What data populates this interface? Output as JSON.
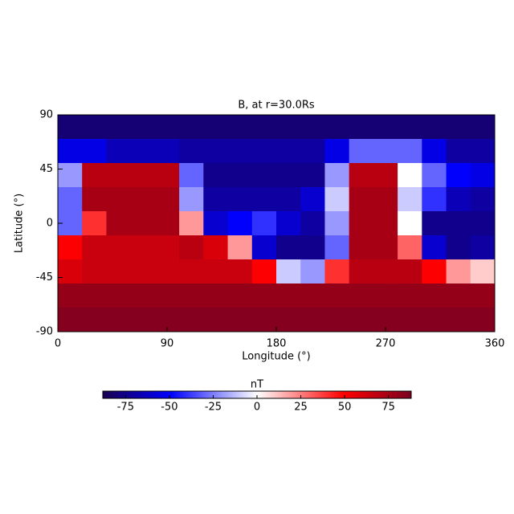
{
  "chart_data": {
    "type": "heatmap",
    "title": "B, at r=30.0Rs",
    "x_label": "Longitude (°)",
    "y_label": "Latitude (°)",
    "xlim": [
      0,
      360
    ],
    "ylim": [
      -90,
      90
    ],
    "xticks": [
      0,
      90,
      180,
      270,
      360
    ],
    "yticks": [
      -90,
      -45,
      0,
      45,
      90
    ],
    "x": [
      10,
      30,
      50,
      70,
      90,
      110,
      130,
      150,
      170,
      190,
      210,
      230,
      250,
      270,
      290,
      310,
      330,
      350
    ],
    "y": [
      80,
      60,
      40,
      20,
      0,
      -20,
      -40,
      -60,
      -80
    ],
    "z": [
      [
        -80,
        -80,
        -80,
        -80,
        -80,
        -80,
        -80,
        -80,
        -80,
        -80,
        -80,
        -80,
        -80,
        -80,
        -80,
        -80,
        -80,
        -80
      ],
      [
        -55,
        -55,
        -65,
        -65,
        -65,
        -70,
        -70,
        -70,
        -70,
        -70,
        -70,
        -55,
        -30,
        -30,
        -30,
        -55,
        -70,
        -70
      ],
      [
        -20,
        70,
        70,
        70,
        70,
        -30,
        -75,
        -75,
        -75,
        -75,
        -75,
        -20,
        70,
        70,
        0,
        -30,
        -50,
        -55
      ],
      [
        -30,
        75,
        75,
        75,
        75,
        -20,
        -70,
        -70,
        -70,
        -70,
        -60,
        -10,
        75,
        75,
        -10,
        -40,
        -65,
        -70
      ],
      [
        -30,
        40,
        75,
        75,
        75,
        20,
        -60,
        -50,
        -40,
        -60,
        -70,
        -20,
        75,
        75,
        0,
        -75,
        -75,
        -75
      ],
      [
        50,
        65,
        65,
        65,
        65,
        70,
        60,
        20,
        -60,
        -75,
        -75,
        -30,
        75,
        75,
        30,
        -60,
        -75,
        -70
      ],
      [
        60,
        65,
        65,
        65,
        65,
        65,
        65,
        65,
        50,
        -10,
        -20,
        40,
        70,
        70,
        70,
        50,
        20,
        10
      ],
      [
        80,
        80,
        80,
        80,
        80,
        80,
        80,
        80,
        80,
        80,
        80,
        80,
        80,
        80,
        80,
        80,
        80,
        80
      ],
      [
        85,
        85,
        85,
        85,
        85,
        85,
        85,
        85,
        85,
        85,
        85,
        85,
        85,
        85,
        85,
        85,
        85,
        85
      ]
    ],
    "colorbar_label": "nT",
    "clim": [
      -88,
      88
    ],
    "cticks": [
      -75,
      -50,
      -25,
      0,
      25,
      50,
      75
    ]
  }
}
